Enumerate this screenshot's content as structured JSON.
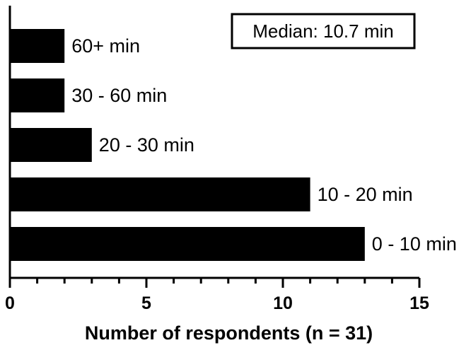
{
  "chart_data": {
    "type": "bar",
    "orientation": "horizontal",
    "categories": [
      "0 - 10 min",
      "10 - 20 min",
      "20 - 30 min",
      "30 - 60 min",
      "60+ min"
    ],
    "values": [
      13,
      11,
      3,
      2,
      2
    ],
    "xlabel": "Number of respondents (n = 31)",
    "ylabel": "",
    "xlim": [
      0,
      15
    ],
    "x_ticks": [
      0,
      5,
      10,
      15
    ],
    "x_tick_labels": [
      "0",
      "5",
      "10",
      "15"
    ],
    "x_minor_tick_step": 1,
    "grid": false,
    "bar_color": "#000000",
    "annotation": "Median: 10.7 min"
  }
}
